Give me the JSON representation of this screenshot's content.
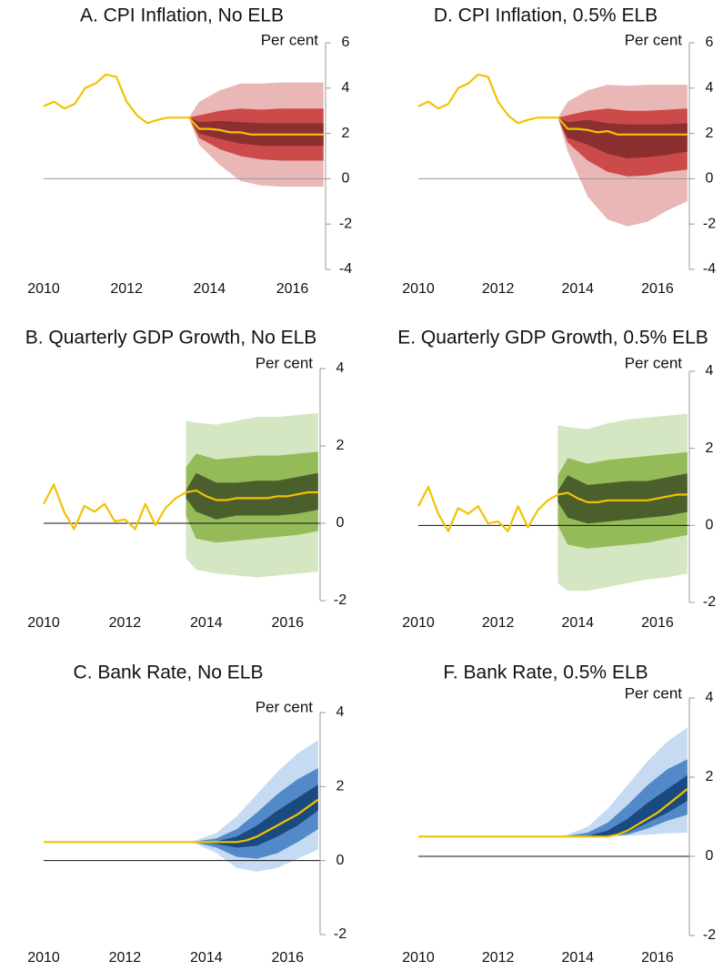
{
  "chart_data": [
    {
      "type": "fan",
      "title": "A. CPI Inflation, No ELB",
      "y_label": "Per cent",
      "x": [
        2010,
        2010.25,
        2010.5,
        2010.75,
        2011,
        2011.25,
        2011.5,
        2011.75,
        2012,
        2012.25,
        2012.5,
        2012.75,
        2013,
        2013.25,
        2013.5,
        2013.75,
        2014,
        2014.25,
        2014.5,
        2014.75,
        2015,
        2015.25,
        2015.5,
        2015.75,
        2016,
        2016.25,
        2016.5,
        2016.75
      ],
      "xlim": [
        2010,
        2016.8
      ],
      "xticks": [
        2010,
        2012,
        2014,
        2016
      ],
      "ylim": [
        -4,
        6
      ],
      "yticks": [
        -4,
        -2,
        0,
        2,
        4,
        6
      ],
      "line": {
        "color": "#f2c200",
        "values": [
          3.2,
          3.4,
          3.1,
          3.3,
          4.0,
          4.2,
          4.6,
          4.5,
          3.4,
          2.8,
          2.45,
          2.6,
          2.7,
          2.7,
          2.7,
          2.2,
          2.2,
          2.15,
          2.05,
          2.05,
          1.95,
          1.95,
          1.95,
          1.95,
          1.95,
          1.95,
          1.95,
          1.95
        ]
      },
      "band_x": [
        2013.5,
        2013.75,
        2014.25,
        2014.75,
        2015.25,
        2015.75,
        2016.25,
        2016.75
      ],
      "bands": [
        {
          "color": "#e9b7b6",
          "lower": [
            2.7,
            1.5,
            0.6,
            -0.1,
            -0.3,
            -0.35,
            -0.35,
            -0.35
          ],
          "upper": [
            2.7,
            3.4,
            3.9,
            4.2,
            4.2,
            4.25,
            4.25,
            4.25
          ]
        },
        {
          "color": "#cc4b4a",
          "lower": [
            2.7,
            1.8,
            1.3,
            1.0,
            0.85,
            0.8,
            0.8,
            0.8
          ],
          "upper": [
            2.7,
            2.8,
            3.0,
            3.1,
            3.05,
            3.1,
            3.1,
            3.1
          ]
        },
        {
          "color": "#8c2f31",
          "lower": [
            2.7,
            2.0,
            1.75,
            1.55,
            1.45,
            1.45,
            1.45,
            1.45
          ],
          "upper": [
            2.7,
            2.5,
            2.55,
            2.5,
            2.45,
            2.45,
            2.45,
            2.45
          ]
        }
      ]
    },
    {
      "type": "fan",
      "title": "D. CPI Inflation, 0.5% ELB",
      "y_label": "Per cent",
      "x": [
        2010,
        2010.25,
        2010.5,
        2010.75,
        2011,
        2011.25,
        2011.5,
        2011.75,
        2012,
        2012.25,
        2012.5,
        2012.75,
        2013,
        2013.25,
        2013.5,
        2013.75,
        2014,
        2014.25,
        2014.5,
        2014.75,
        2015,
        2015.25,
        2015.5,
        2015.75,
        2016,
        2016.25,
        2016.5,
        2016.75
      ],
      "xlim": [
        2010,
        2016.8
      ],
      "xticks": [
        2010,
        2012,
        2014,
        2016
      ],
      "ylim": [
        -4,
        6
      ],
      "yticks": [
        -4,
        -2,
        0,
        2,
        4,
        6
      ],
      "line": {
        "color": "#f2c200",
        "values": [
          3.2,
          3.4,
          3.1,
          3.3,
          4.0,
          4.2,
          4.6,
          4.5,
          3.4,
          2.8,
          2.45,
          2.6,
          2.7,
          2.7,
          2.7,
          2.2,
          2.2,
          2.15,
          2.05,
          2.1,
          1.95,
          1.95,
          1.95,
          1.95,
          1.95,
          1.95,
          1.95,
          1.95
        ]
      },
      "band_x": [
        2013.5,
        2013.75,
        2014.25,
        2014.75,
        2015.25,
        2015.75,
        2016.25,
        2016.75
      ],
      "bands": [
        {
          "color": "#e9b7b6",
          "lower": [
            2.7,
            1.2,
            -0.8,
            -1.8,
            -2.1,
            -1.9,
            -1.4,
            -1.0
          ],
          "upper": [
            2.7,
            3.4,
            3.9,
            4.15,
            4.1,
            4.15,
            4.15,
            4.15
          ]
        },
        {
          "color": "#cc4b4a",
          "lower": [
            2.7,
            1.6,
            0.8,
            0.3,
            0.1,
            0.15,
            0.3,
            0.4
          ],
          "upper": [
            2.7,
            2.8,
            3.0,
            3.1,
            3.0,
            3.0,
            3.05,
            3.1
          ]
        },
        {
          "color": "#8c2f31",
          "lower": [
            2.7,
            1.8,
            1.5,
            1.1,
            0.9,
            0.95,
            1.05,
            1.2
          ],
          "upper": [
            2.7,
            2.5,
            2.6,
            2.45,
            2.4,
            2.4,
            2.4,
            2.45
          ]
        }
      ]
    },
    {
      "type": "fan",
      "title": "B. Quarterly GDP Growth, No ELB",
      "y_label": "Per cent",
      "x": [
        2010,
        2010.25,
        2010.5,
        2010.75,
        2011,
        2011.25,
        2011.5,
        2011.75,
        2012,
        2012.25,
        2012.5,
        2012.75,
        2013,
        2013.25,
        2013.5,
        2013.75,
        2014,
        2014.25,
        2014.5,
        2014.75,
        2015,
        2015.25,
        2015.5,
        2015.75,
        2016,
        2016.25,
        2016.5,
        2016.75
      ],
      "xlim": [
        2010,
        2016.8
      ],
      "xticks": [
        2010,
        2012,
        2014,
        2016
      ],
      "ylim": [
        -2,
        4
      ],
      "yticks": [
        -2,
        0,
        2,
        4
      ],
      "line": {
        "color": "#f2c200",
        "values": [
          0.5,
          1.0,
          0.3,
          -0.15,
          0.45,
          0.3,
          0.5,
          0.05,
          0.1,
          -0.15,
          0.5,
          -0.05,
          0.4,
          0.65,
          0.8,
          0.85,
          0.7,
          0.6,
          0.6,
          0.65,
          0.65,
          0.65,
          0.65,
          0.7,
          0.7,
          0.75,
          0.8,
          0.8
        ]
      },
      "band_x": [
        2013.5,
        2013.75,
        2014.25,
        2014.75,
        2015.25,
        2015.75,
        2016.25,
        2016.75
      ],
      "bands": [
        {
          "color": "#d5e6c2",
          "lower": [
            -0.9,
            -1.2,
            -1.3,
            -1.35,
            -1.4,
            -1.35,
            -1.3,
            -1.25
          ],
          "upper": [
            2.65,
            2.6,
            2.55,
            2.65,
            2.75,
            2.75,
            2.8,
            2.85
          ]
        },
        {
          "color": "#95bb59",
          "lower": [
            0.2,
            -0.4,
            -0.5,
            -0.45,
            -0.4,
            -0.35,
            -0.3,
            -0.2
          ],
          "upper": [
            1.45,
            1.8,
            1.65,
            1.7,
            1.75,
            1.75,
            1.8,
            1.85
          ]
        },
        {
          "color": "#4b5f2d",
          "lower": [
            0.65,
            0.3,
            0.1,
            0.2,
            0.2,
            0.2,
            0.25,
            0.35
          ],
          "upper": [
            0.85,
            1.3,
            1.05,
            1.05,
            1.1,
            1.1,
            1.2,
            1.3
          ]
        }
      ]
    },
    {
      "type": "fan",
      "title": "E. Quarterly GDP Growth, 0.5% ELB",
      "y_label": "Per cent",
      "x": [
        2010,
        2010.25,
        2010.5,
        2010.75,
        2011,
        2011.25,
        2011.5,
        2011.75,
        2012,
        2012.25,
        2012.5,
        2012.75,
        2013,
        2013.25,
        2013.5,
        2013.75,
        2014,
        2014.25,
        2014.5,
        2014.75,
        2015,
        2015.25,
        2015.5,
        2015.75,
        2016,
        2016.25,
        2016.5,
        2016.75
      ],
      "xlim": [
        2010,
        2016.8
      ],
      "xticks": [
        2010,
        2012,
        2014,
        2016
      ],
      "ylim": [
        -2,
        4
      ],
      "yticks": [
        -2,
        0,
        2,
        4
      ],
      "line": {
        "color": "#f2c200",
        "values": [
          0.5,
          1.0,
          0.3,
          -0.15,
          0.45,
          0.3,
          0.5,
          0.05,
          0.1,
          -0.15,
          0.5,
          -0.05,
          0.4,
          0.65,
          0.8,
          0.85,
          0.7,
          0.6,
          0.6,
          0.65,
          0.65,
          0.65,
          0.65,
          0.65,
          0.7,
          0.75,
          0.8,
          0.8
        ]
      },
      "band_x": [
        2013.5,
        2013.75,
        2014.25,
        2014.75,
        2015.25,
        2015.75,
        2016.25,
        2016.75
      ],
      "bands": [
        {
          "color": "#d5e6c2",
          "lower": [
            -1.5,
            -1.7,
            -1.7,
            -1.6,
            -1.5,
            -1.4,
            -1.35,
            -1.25
          ],
          "upper": [
            2.6,
            2.55,
            2.5,
            2.65,
            2.75,
            2.8,
            2.85,
            2.9
          ]
        },
        {
          "color": "#95bb59",
          "lower": [
            0.0,
            -0.5,
            -0.6,
            -0.55,
            -0.5,
            -0.45,
            -0.35,
            -0.25
          ],
          "upper": [
            1.3,
            1.75,
            1.6,
            1.7,
            1.75,
            1.8,
            1.85,
            1.9
          ]
        },
        {
          "color": "#4b5f2d",
          "lower": [
            0.6,
            0.2,
            0.05,
            0.1,
            0.15,
            0.2,
            0.25,
            0.35
          ],
          "upper": [
            0.9,
            1.3,
            1.05,
            1.1,
            1.15,
            1.15,
            1.25,
            1.35
          ]
        }
      ]
    },
    {
      "type": "fan",
      "title": "C. Bank Rate, No ELB",
      "y_label": "Per cent",
      "x": [
        2010,
        2010.25,
        2010.5,
        2010.75,
        2011,
        2011.25,
        2011.5,
        2011.75,
        2012,
        2012.25,
        2012.5,
        2012.75,
        2013,
        2013.25,
        2013.5,
        2013.75,
        2014,
        2014.25,
        2014.5,
        2014.75,
        2015,
        2015.25,
        2015.5,
        2015.75,
        2016,
        2016.25,
        2016.5,
        2016.75
      ],
      "xlim": [
        2010,
        2016.8
      ],
      "xticks": [
        2010,
        2012,
        2014,
        2016
      ],
      "ylim": [
        -2,
        4
      ],
      "yticks": [
        -2,
        0,
        2,
        4
      ],
      "line": {
        "color": "#f2c200",
        "values": [
          0.5,
          0.5,
          0.5,
          0.5,
          0.5,
          0.5,
          0.5,
          0.5,
          0.5,
          0.5,
          0.5,
          0.5,
          0.5,
          0.5,
          0.5,
          0.5,
          0.5,
          0.5,
          0.5,
          0.5,
          0.55,
          0.65,
          0.8,
          0.95,
          1.1,
          1.25,
          1.45,
          1.65
        ]
      },
      "band_x": [
        2013.5,
        2013.75,
        2014.25,
        2014.75,
        2015.25,
        2015.75,
        2016.25,
        2016.75
      ],
      "bands": [
        {
          "color": "#c6dbf1",
          "lower": [
            0.5,
            0.45,
            0.2,
            -0.2,
            -0.3,
            -0.2,
            0.05,
            0.3
          ],
          "upper": [
            0.5,
            0.55,
            0.75,
            1.2,
            1.8,
            2.4,
            2.9,
            3.25
          ]
        },
        {
          "color": "#528ac9",
          "lower": [
            0.5,
            0.48,
            0.35,
            0.1,
            0.05,
            0.2,
            0.5,
            0.85
          ],
          "upper": [
            0.5,
            0.52,
            0.6,
            0.85,
            1.3,
            1.8,
            2.2,
            2.5
          ]
        },
        {
          "color": "#1b4a80",
          "lower": [
            0.5,
            0.5,
            0.45,
            0.35,
            0.4,
            0.65,
            0.95,
            1.35
          ],
          "upper": [
            0.5,
            0.5,
            0.52,
            0.65,
            0.95,
            1.35,
            1.7,
            2.05
          ]
        }
      ]
    },
    {
      "type": "fan",
      "title": "F. Bank Rate, 0.5% ELB",
      "y_label": "Per cent",
      "x": [
        2010,
        2010.25,
        2010.5,
        2010.75,
        2011,
        2011.25,
        2011.5,
        2011.75,
        2012,
        2012.25,
        2012.5,
        2012.75,
        2013,
        2013.25,
        2013.5,
        2013.75,
        2014,
        2014.25,
        2014.5,
        2014.75,
        2015,
        2015.25,
        2015.5,
        2015.75,
        2016,
        2016.25,
        2016.5,
        2016.75
      ],
      "xlim": [
        2010,
        2016.8
      ],
      "xticks": [
        2010,
        2012,
        2014,
        2016
      ],
      "ylim": [
        -2,
        4
      ],
      "yticks": [
        -2,
        0,
        2,
        4
      ],
      "line": {
        "color": "#f2c200",
        "values": [
          0.5,
          0.5,
          0.5,
          0.5,
          0.5,
          0.5,
          0.5,
          0.5,
          0.5,
          0.5,
          0.5,
          0.5,
          0.5,
          0.5,
          0.5,
          0.5,
          0.5,
          0.5,
          0.5,
          0.5,
          0.55,
          0.65,
          0.8,
          0.95,
          1.1,
          1.3,
          1.5,
          1.7
        ]
      },
      "band_x": [
        2013.5,
        2013.75,
        2014.25,
        2014.75,
        2015.25,
        2015.75,
        2016.25,
        2016.75
      ],
      "bands": [
        {
          "color": "#c6dbf1",
          "lower": [
            0.5,
            0.5,
            0.5,
            0.5,
            0.52,
            0.55,
            0.58,
            0.6
          ],
          "upper": [
            0.5,
            0.55,
            0.75,
            1.2,
            1.8,
            2.4,
            2.9,
            3.25
          ]
        },
        {
          "color": "#528ac9",
          "lower": [
            0.5,
            0.5,
            0.5,
            0.5,
            0.55,
            0.7,
            0.9,
            1.05
          ],
          "upper": [
            0.5,
            0.52,
            0.6,
            0.85,
            1.3,
            1.8,
            2.2,
            2.45
          ]
        },
        {
          "color": "#1b4a80",
          "lower": [
            0.5,
            0.5,
            0.5,
            0.5,
            0.6,
            0.85,
            1.1,
            1.4
          ],
          "upper": [
            0.5,
            0.5,
            0.52,
            0.65,
            0.95,
            1.35,
            1.7,
            2.05
          ]
        }
      ]
    }
  ]
}
